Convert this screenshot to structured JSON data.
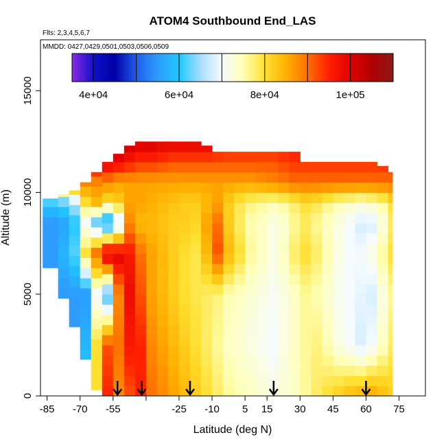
{
  "chart_data": {
    "type": "heatmap",
    "title": "ATOM4 Southbound End_LAS",
    "flights_label": "Flts: 2,3,4,5,6,7",
    "mmdd_label": "MMDD: 0427,0429,0501,0503,0506,0509",
    "xlabel": "Latitude (deg N)",
    "ylabel": "Altitude (m)",
    "xlim": [
      -88,
      87
    ],
    "ylim": [
      0,
      17500
    ],
    "x_ticks": [
      -85,
      -70,
      -55,
      -40,
      -25,
      -10,
      5,
      15,
      30,
      45,
      60,
      75
    ],
    "y_ticks": [
      0,
      5000,
      10000,
      15000
    ],
    "x_tick_labels": [
      "-85",
      "-70",
      "-55",
      "",
      "-25",
      "-10",
      "5",
      "15",
      "30",
      "45",
      "60",
      "75"
    ],
    "y_tick_labels": [
      "0",
      "5000",
      "10000",
      "15000"
    ],
    "colorbar": {
      "range": [
        35000,
        110000
      ],
      "tick_values": [
        40000,
        60000,
        80000,
        100000
      ],
      "tick_labels": [
        "4e+04",
        "6e+04",
        "8e+04",
        "1e+05"
      ],
      "colors": [
        "#8a2be2",
        "#1010c8",
        "#0000a8",
        "#1e5fe8",
        "#2e9bff",
        "#1ec8ff",
        "#a8ddff",
        "#f6fbff",
        "#ffffb4",
        "#ffe030",
        "#ffb000",
        "#ff7000",
        "#ff2000",
        "#e00000",
        "#b00000",
        "#8b1a1a"
      ]
    },
    "arrow_latitudes": [
      -53,
      -42,
      -20,
      18,
      60
    ],
    "profile": {
      "lat_edges": [
        -87,
        -80,
        -75,
        -70,
        -65,
        -60,
        -55,
        -50,
        -45,
        -40,
        -35,
        -30,
        -25,
        -20,
        -15,
        -10,
        -5,
        0,
        5,
        10,
        15,
        20,
        25,
        30,
        35,
        40,
        45,
        50,
        55,
        60,
        65,
        70,
        72
      ],
      "top_altitude": [
        9700,
        9900,
        10100,
        10500,
        11000,
        11500,
        11900,
        12300,
        12500,
        12500,
        12500,
        12500,
        12500,
        12500,
        12300,
        12000,
        12000,
        12000,
        12000,
        12000,
        12000,
        12000,
        12000,
        11500,
        11500,
        11500,
        11500,
        11500,
        11500,
        11500,
        11300,
        11000
      ],
      "bottom_altitude": [
        6300,
        4800,
        3400,
        1800,
        300,
        0,
        0,
        0,
        0,
        0,
        0,
        0,
        0,
        0,
        0,
        0,
        0,
        0,
        0,
        0,
        0,
        0,
        0,
        0,
        0,
        0,
        0,
        0,
        0,
        0,
        0,
        0
      ],
      "levels": [
        {
          "alt": 0,
          "values": [
            55000,
            55000,
            55000,
            62000,
            80000,
            95000,
            88000,
            92000,
            95000,
            90000,
            88000,
            86000,
            84000,
            82000,
            80000,
            78000,
            76000,
            75000,
            74000,
            73000,
            72000,
            73000,
            74000,
            76000,
            78000,
            80000,
            82000,
            84000,
            85000,
            86000,
            84000,
            82000
          ]
        },
        {
          "alt": 2500,
          "values": [
            55000,
            55000,
            55000,
            58000,
            80000,
            92000,
            90000,
            96000,
            95000,
            88000,
            86000,
            84000,
            82000,
            80000,
            78000,
            76000,
            74000,
            73000,
            72000,
            71000,
            70000,
            72000,
            74000,
            76000,
            77000,
            75000,
            72000,
            70000,
            68000,
            70000,
            74000,
            78000
          ]
        },
        {
          "alt": 5000,
          "values": [
            55000,
            55000,
            55000,
            55000,
            70000,
            60000,
            88000,
            98000,
            92000,
            86000,
            84000,
            82000,
            80000,
            79000,
            78000,
            77000,
            75000,
            74000,
            73000,
            72000,
            71000,
            72000,
            74000,
            76000,
            75000,
            73000,
            71000,
            70000,
            69000,
            68000,
            72000,
            76000
          ]
        },
        {
          "alt": 7000,
          "values": [
            55000,
            58000,
            62000,
            80000,
            90000,
            102000,
            100000,
            96000,
            90000,
            86000,
            84000,
            82000,
            80000,
            79000,
            84000,
            92000,
            84000,
            80000,
            76000,
            74000,
            72000,
            74000,
            78000,
            80000,
            78000,
            75000,
            72000,
            70000,
            70000,
            72000,
            76000,
            80000
          ]
        },
        {
          "alt": 8500,
          "values": [
            55000,
            56000,
            60000,
            70000,
            62000,
            55000,
            66000,
            88000,
            84000,
            84000,
            83000,
            82000,
            82000,
            81000,
            86000,
            90000,
            82000,
            78000,
            75000,
            74000,
            72000,
            73000,
            76000,
            78000,
            76000,
            74000,
            72000,
            70000,
            68000,
            68000,
            72000,
            78000
          ]
        },
        {
          "alt": 9500,
          "values": [
            60000,
            62000,
            66000,
            80000,
            84000,
            80000,
            82000,
            86000,
            86000,
            85000,
            84000,
            83000,
            82000,
            82000,
            84000,
            86000,
            82000,
            79000,
            77000,
            76000,
            75000,
            76000,
            78000,
            80000,
            79000,
            77000,
            75000,
            74000,
            73000,
            74000,
            76000,
            80000
          ]
        },
        {
          "alt": 10500,
          "values": [
            88000,
            88000,
            88000,
            88000,
            88000,
            88000,
            86000,
            86000,
            86000,
            86000,
            86000,
            86000,
            86000,
            86000,
            86000,
            86000,
            86000,
            86000,
            86000,
            87000,
            88000,
            89000,
            90000,
            90000,
            90000,
            90000,
            90000,
            90000,
            90000,
            90000,
            90000,
            90000
          ]
        },
        {
          "alt": 11500,
          "values": [
            92000,
            92000,
            94000,
            96000,
            98000,
            100000,
            98000,
            96000,
            94000,
            94000,
            93000,
            92000,
            92000,
            92000,
            92000,
            92000,
            92000,
            92000,
            92000,
            92000,
            92000,
            93000,
            94000,
            94000,
            94000,
            94000,
            94000,
            94000,
            94000,
            94000,
            94000,
            94000
          ]
        },
        {
          "alt": 12500,
          "values": [
            100000,
            100000,
            100000,
            100000,
            100000,
            104000,
            104000,
            102000,
            101000,
            101000,
            100000,
            100000,
            100000,
            100000,
            100000,
            98000,
            96000,
            96000,
            96000,
            96000,
            96000,
            96000,
            96000,
            96000,
            96000,
            96000,
            96000,
            96000,
            96000,
            96000,
            96000,
            96000
          ]
        }
      ]
    }
  }
}
